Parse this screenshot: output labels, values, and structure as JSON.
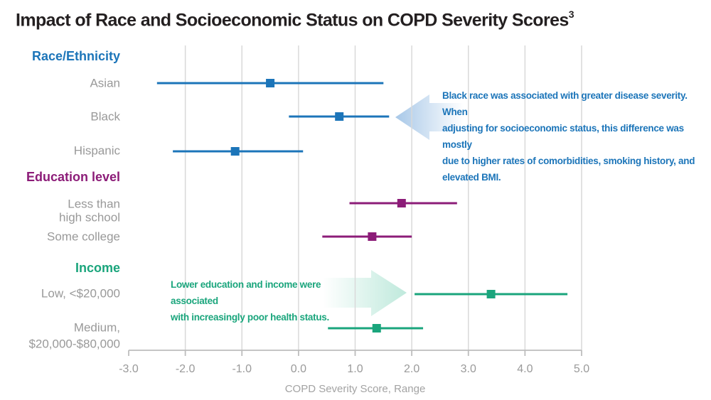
{
  "title": "Impact of Race and Socioeconomic Status on COPD Severity Scores",
  "title_superscript": "3",
  "colors": {
    "race": "#1c75b9",
    "education": "#8c1c78",
    "income": "#1aa57c",
    "grid": "#d9d9d9",
    "label": "#999999"
  },
  "annotations": {
    "blue": {
      "lines": [
        "Black race was associated with greater disease severity. When",
        "adjusting for socioeconomic status, this difference was mostly",
        "due to higher rates of comorbidities, smoking history, and",
        "elevated BMI."
      ],
      "arrow_direction": "left"
    },
    "green": {
      "lines": [
        "Lower education and income were associated",
        "with increasingly poor health status."
      ],
      "arrow_direction": "right"
    }
  },
  "chart_data": {
    "type": "forest",
    "title": "Impact of Race and Socioeconomic Status on COPD Severity Scores",
    "xlabel": "COPD Severity Score, Range",
    "xlim": [
      -3.0,
      5.0
    ],
    "xticks": [
      "-3.0",
      "-2.0",
      "-1.0",
      "0.0",
      "1.0",
      "2.0",
      "3.0",
      "4.0",
      "5.0"
    ],
    "grid": true,
    "groups": [
      {
        "name": "Race/Ethnicity",
        "color_key": "race",
        "items": [
          {
            "label": [
              "Asian"
            ],
            "estimate": -0.5,
            "low": -2.5,
            "high": 1.5
          },
          {
            "label": [
              "Black"
            ],
            "estimate": 0.72,
            "low": -0.17,
            "high": 1.6
          },
          {
            "label": [
              "Hispanic"
            ],
            "estimate": -1.12,
            "low": -2.22,
            "high": 0.08
          }
        ]
      },
      {
        "name": "Education level",
        "color_key": "education",
        "items": [
          {
            "label": [
              "Less than",
              "high school"
            ],
            "estimate": 1.82,
            "low": 0.9,
            "high": 2.8
          },
          {
            "label": [
              "Some college"
            ],
            "estimate": 1.3,
            "low": 0.42,
            "high": 2.0
          }
        ]
      },
      {
        "name": "Income",
        "color_key": "income",
        "items": [
          {
            "label": [
              "Low, <$20,000"
            ],
            "estimate": 3.4,
            "low": 2.05,
            "high": 4.75
          },
          {
            "label": [
              "Medium,",
              "$20,000-$80,000"
            ],
            "estimate": 1.38,
            "low": 0.52,
            "high": 2.2
          }
        ]
      }
    ]
  }
}
